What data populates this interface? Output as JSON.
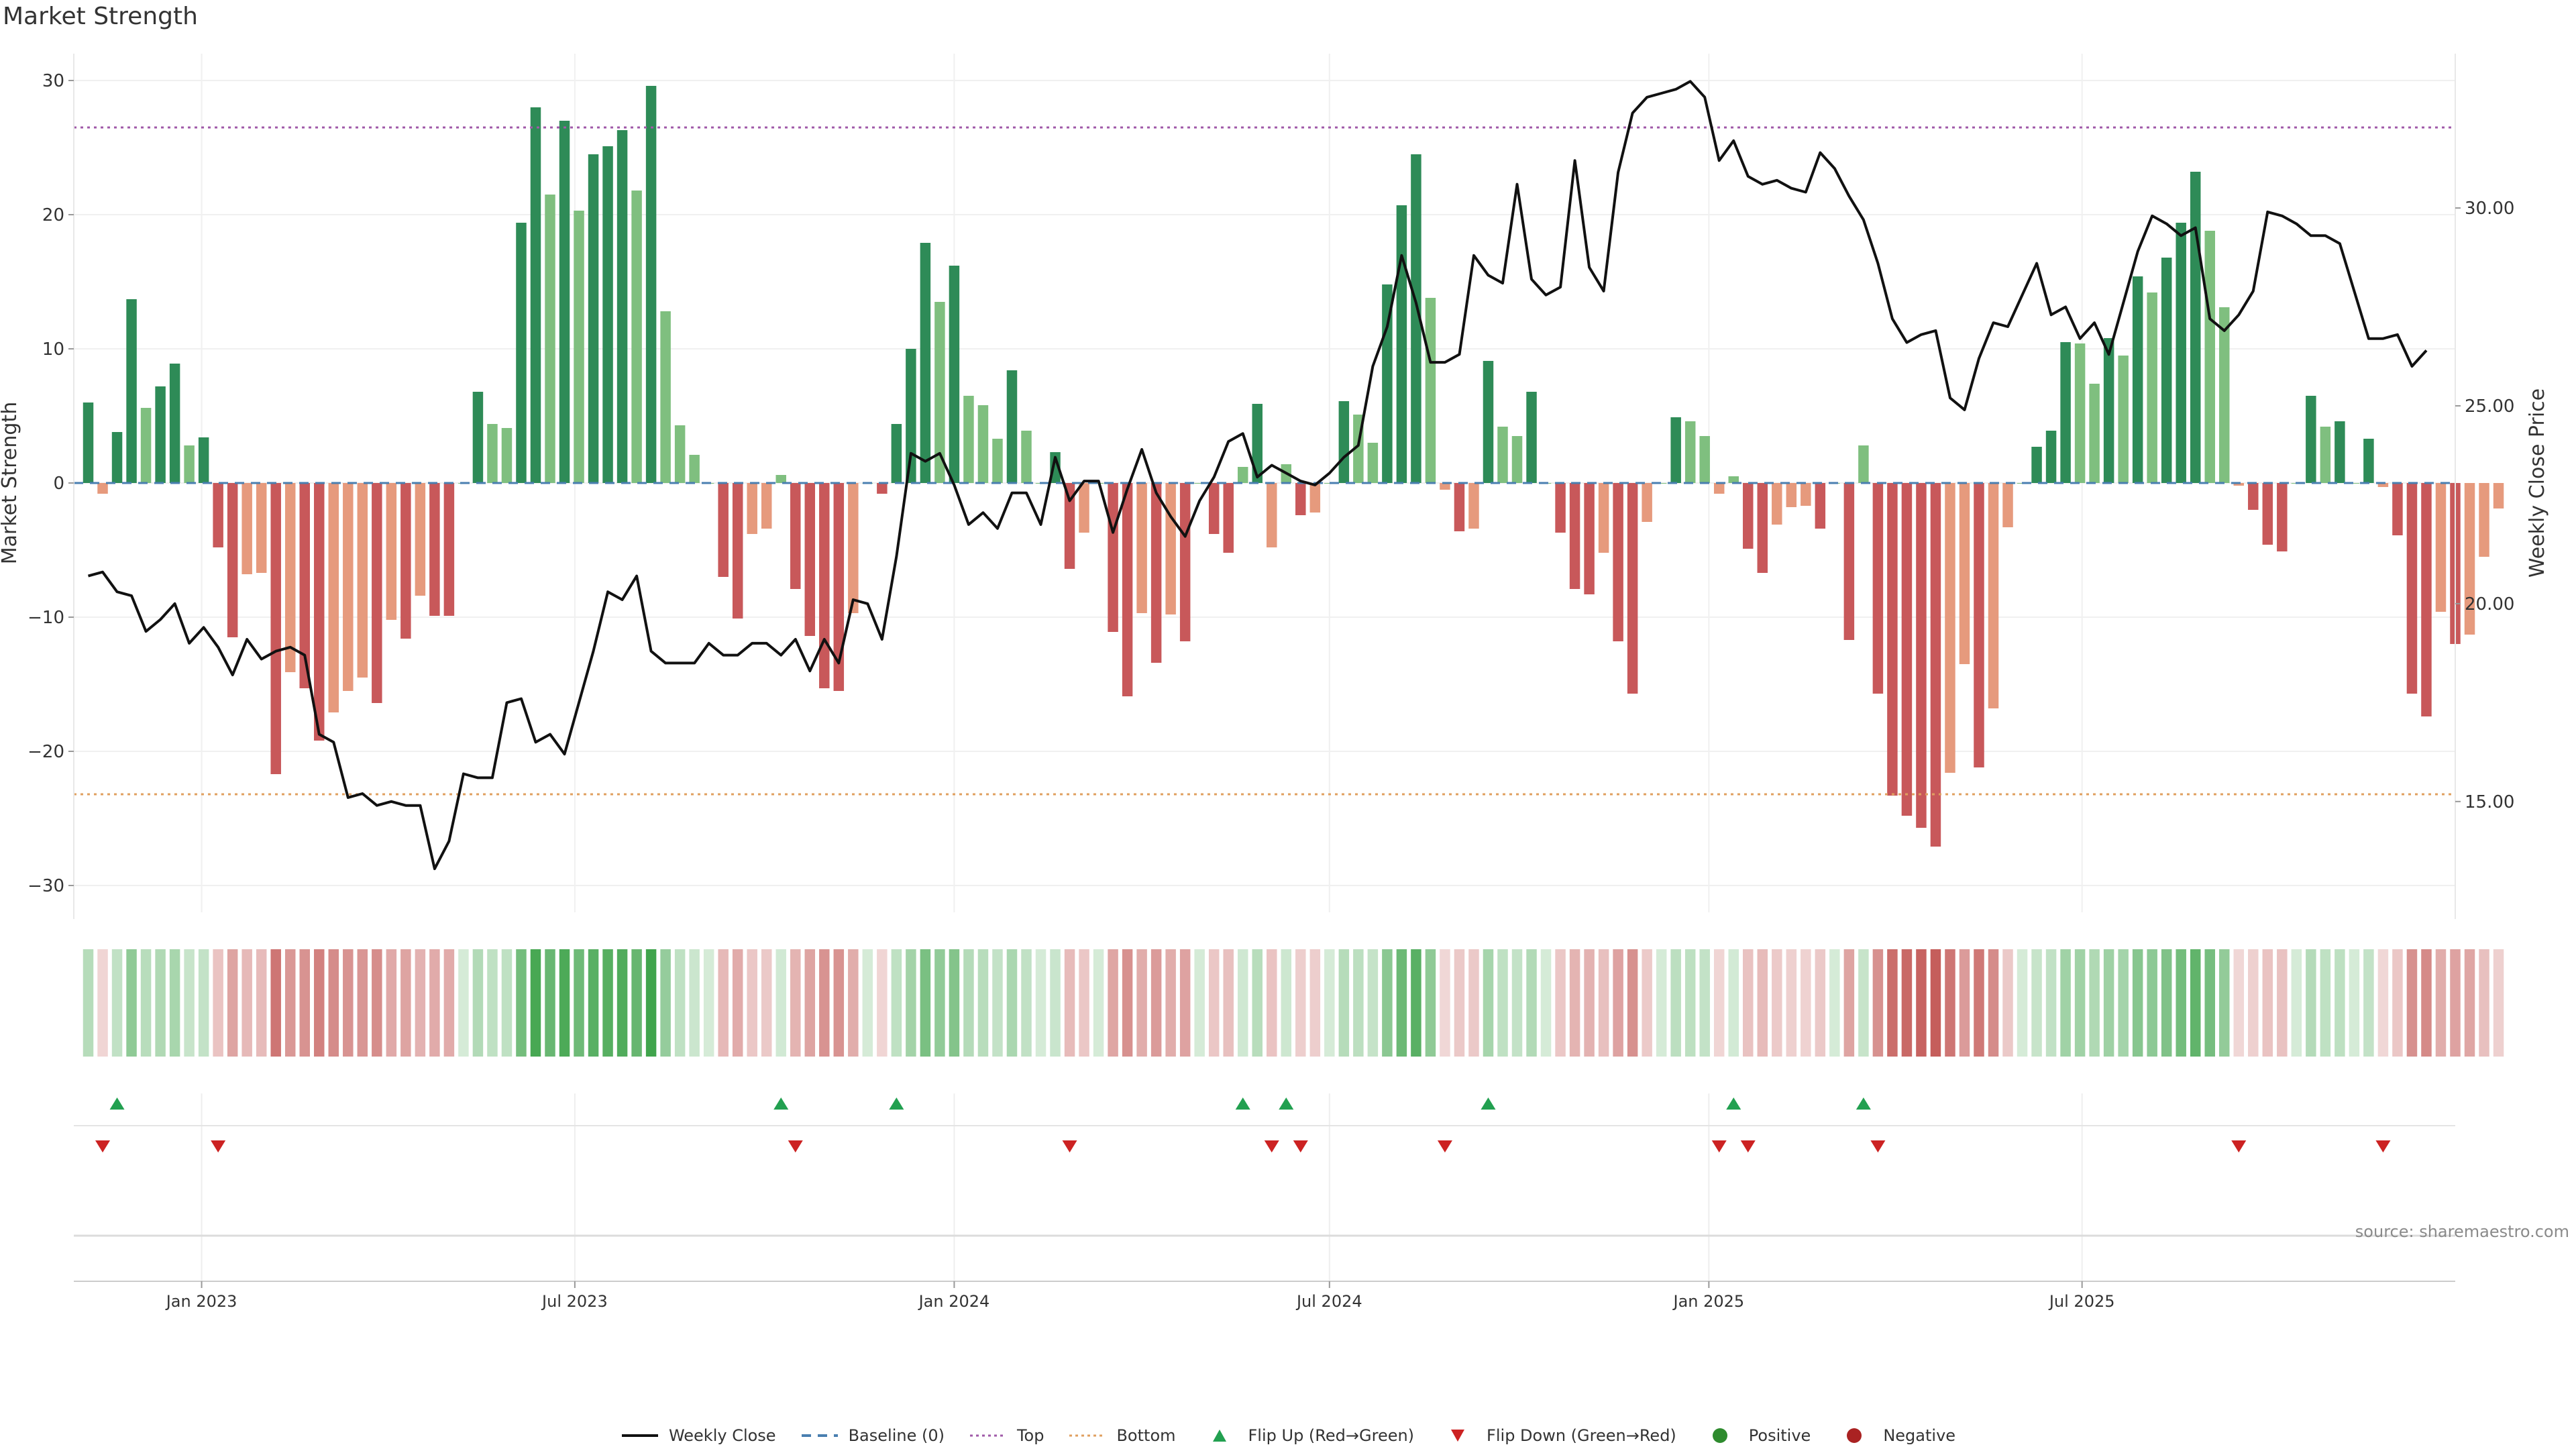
{
  "title": "Market Strength",
  "source": "source: sharemaestro.com",
  "colors": {
    "strong_pos": "#2e8b57",
    "weak_pos": "#7fbf7f",
    "strong_neg": "#c8585a",
    "weak_neg": "#e69a7d",
    "line": "#111111",
    "top_line": "#a05aa8",
    "bottom_line": "#e0a060",
    "baseline": "#4a7fb0",
    "flip_up": "#22a050",
    "flip_down": "#cc2222"
  },
  "legend": [
    {
      "label": "Weekly Close",
      "kind": "solid",
      "color": "#111111",
      "icon": "line-icon"
    },
    {
      "label": "Baseline (0)",
      "kind": "dash",
      "color": "#4a7fb0",
      "icon": "dashed-line-icon"
    },
    {
      "label": "Top",
      "kind": "dot",
      "color": "#a05aa8",
      "icon": "dotted-line-icon"
    },
    {
      "label": "Bottom",
      "kind": "dot",
      "color": "#e0a060",
      "icon": "dotted-line-icon"
    },
    {
      "label": "Flip Up (Red→Green)",
      "kind": "tri-up",
      "color": "#22a050",
      "icon": "triangle-up-icon"
    },
    {
      "label": "Flip Down (Green→Red)",
      "kind": "tri-down",
      "color": "#cc2222",
      "icon": "triangle-down-icon"
    },
    {
      "label": "Positive",
      "kind": "circle",
      "color": "#2e8b2e",
      "icon": "circle-icon"
    },
    {
      "label": "Negative",
      "kind": "circle",
      "color": "#aa2222",
      "icon": "circle-icon"
    }
  ],
  "chart_data": {
    "type": "bar",
    "title": "Market Strength",
    "ylabel": "Market Strength",
    "y2label": "Weekly Close Price",
    "ylim": [
      -32,
      32
    ],
    "y2lim": [
      12.2,
      33.9
    ],
    "yticks": [
      "−30",
      "−20",
      "−10",
      "0",
      "10",
      "20",
      "30"
    ],
    "ytick_values": [
      -30,
      -20,
      -10,
      0,
      10,
      20,
      30
    ],
    "y2ticks": [
      "15.00",
      "20.00",
      "25.00",
      "30.00"
    ],
    "y2tick_values": [
      15,
      20,
      25,
      30
    ],
    "x_start": "2022-11-07",
    "week_days": 7,
    "xlim": [
      "2022-10-31",
      "2025-12-29"
    ],
    "xticks": [
      {
        "label": "Jan 2023",
        "date": "2023-01-01"
      },
      {
        "label": "Jul 2023",
        "date": "2023-07-01"
      },
      {
        "label": "Jan 2024",
        "date": "2024-01-01"
      },
      {
        "label": "Jul 2024",
        "date": "2024-07-01"
      },
      {
        "label": "Jan 2025",
        "date": "2025-01-01"
      },
      {
        "label": "Jul 2025",
        "date": "2025-07-01"
      }
    ],
    "reference_lines": {
      "top": 26.5,
      "bottom": -23.2,
      "baseline": 0
    },
    "strength": [
      6,
      -0.8,
      3.8,
      13.7,
      5.6,
      7.2,
      8.9,
      2.8,
      3.4,
      -4.8,
      -11.5,
      -6.8,
      -6.7,
      -21.7,
      -14.1,
      -15.3,
      -19.2,
      -17.1,
      -15.5,
      -14.5,
      -16.4,
      -10.2,
      -11.6,
      -8.4,
      -9.9,
      -9.9,
      0,
      6.8,
      4.4,
      4.1,
      19.4,
      28,
      21.5,
      27,
      20.3,
      24.5,
      25.1,
      26.3,
      21.8,
      29.6,
      12.8,
      4.3,
      2.1,
      0,
      -7,
      -10.1,
      -3.8,
      -3.4,
      0.6,
      -7.9,
      -11.4,
      -15.3,
      -15.5,
      -9.7,
      0,
      -0.8,
      4.4,
      10,
      17.9,
      13.5,
      16.2,
      6.5,
      5.8,
      3.3,
      8.4,
      3.9,
      0,
      2.3,
      -6.4,
      -3.7,
      0,
      -11.1,
      -15.9,
      -9.7,
      -13.4,
      -9.8,
      -11.8,
      0,
      -3.8,
      -5.2,
      1.2,
      5.9,
      -4.8,
      1.4,
      -2.4,
      -2.2,
      0,
      6.1,
      5.1,
      3,
      14.8,
      20.7,
      24.5,
      13.8,
      -0.5,
      -3.6,
      -3.4,
      9.1,
      4.2,
      3.5,
      6.8,
      0,
      -3.7,
      -7.9,
      -8.3,
      -5.2,
      -11.8,
      -15.7,
      -2.9,
      0,
      4.9,
      4.6,
      3.5,
      -0.8,
      0.5,
      -4.9,
      -6.7,
      -3.1,
      -1.8,
      -1.7,
      -3.4,
      0,
      -11.7,
      2.8,
      -15.7,
      -23.3,
      -24.8,
      -25.7,
      -27.1,
      -21.6,
      -13.5,
      -21.2,
      -16.8,
      -3.3,
      0,
      2.7,
      3.9,
      10.5,
      10.4,
      7.4,
      10.8,
      9.5,
      15.4,
      14.2,
      16.8,
      19.4,
      23.2,
      18.8,
      13.1,
      -0.2,
      -2,
      -4.6,
      -5.1,
      0,
      6.5,
      4.2,
      4.6,
      0,
      3.3,
      -0.3,
      -3.9,
      -15.7,
      -17.4,
      -9.6,
      -12,
      -11.3,
      -5.5,
      -1.9
    ],
    "close": [
      20.7,
      20.8,
      20.3,
      20.2,
      19.3,
      19.6,
      20,
      19.0,
      19.4,
      18.9,
      18.2,
      19.1,
      18.6,
      18.8,
      18.9,
      18.7,
      16.7,
      16.5,
      15.1,
      15.2,
      14.9,
      15.0,
      14.9,
      14.9,
      13.3,
      14.0,
      15.7,
      15.6,
      15.6,
      17.5,
      17.6,
      16.5,
      16.7,
      16.2,
      17.5,
      18.8,
      20.3,
      20.1,
      20.7,
      18.8,
      18.5,
      18.5,
      18.5,
      19.0,
      18.7,
      18.7,
      19.0,
      19.0,
      18.7,
      19.1,
      18.3,
      19.1,
      18.5,
      20.1,
      20.0,
      19.1,
      21.2,
      23.8,
      23.6,
      23.8,
      23.0,
      22.0,
      22.3,
      21.9,
      22.8,
      22.8,
      22.0,
      23.7,
      22.6,
      23.1,
      23.1,
      21.8,
      22.9,
      23.9,
      22.8,
      22.2,
      21.7,
      22.6,
      23.2,
      24.1,
      24.3,
      23.2,
      23.5,
      23.3,
      23.1,
      23.0,
      23.3,
      23.7,
      24.0,
      26.0,
      27.0,
      28.8,
      27.6,
      26.1,
      26.1,
      26.3,
      28.8,
      28.3,
      28.1,
      30.6,
      28.2,
      27.8,
      28.0,
      31.2,
      28.5,
      27.9,
      30.9,
      32.4,
      32.8,
      32.9,
      33.0,
      33.2,
      32.8,
      31.2,
      31.7,
      30.8,
      30.6,
      30.7,
      30.5,
      30.4,
      31.4,
      31.0,
      30.3,
      29.7,
      28.6,
      27.2,
      26.6,
      26.8,
      26.9,
      25.2,
      24.9,
      26.2,
      27.1,
      27.0,
      27.8,
      28.6,
      27.3,
      27.5,
      26.7,
      27.1,
      26.3,
      27.6,
      28.9,
      29.8,
      29.6,
      29.3,
      29.5,
      27.2,
      26.9,
      27.3,
      27.9,
      29.9,
      29.8,
      29.6,
      29.3,
      29.3,
      29.1,
      27.9,
      26.7,
      26.7,
      26.8,
      26.0,
      26.4
    ]
  }
}
